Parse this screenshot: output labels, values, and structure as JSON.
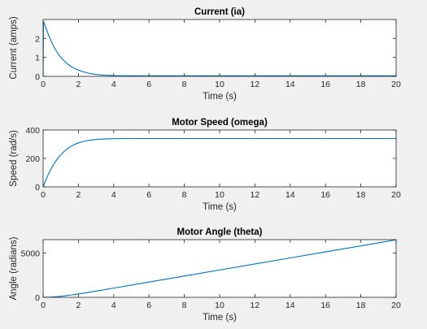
{
  "colors": {
    "line": "#0072BD",
    "axes_bg": "#ffffff",
    "figure_bg": "#f0f0f0",
    "axis": "#262626"
  },
  "chart_data": [
    {
      "type": "line",
      "title": "Current (ia)",
      "xlabel": "Time (s)",
      "ylabel": "Current (amps)",
      "xlim": [
        0,
        20
      ],
      "ylim": [
        0,
        3
      ],
      "xticks": [
        0,
        2,
        4,
        6,
        8,
        10,
        12,
        14,
        16,
        18,
        20
      ],
      "yticks": [
        0,
        1,
        2
      ],
      "grid": false,
      "series": [
        {
          "x": [
            0,
            0.02,
            0.05,
            0.1,
            0.2,
            0.3,
            0.4,
            0.5,
            0.6,
            0.7,
            0.8,
            0.9,
            1.0,
            1.2,
            1.4,
            1.6,
            1.8,
            2.0,
            2.3,
            2.6,
            3.0,
            3.5,
            4.0,
            5.0,
            6.0,
            8.0,
            10.0,
            12.0,
            14.0,
            16.0,
            18.0,
            20.0
          ],
          "y": [
            0,
            2.8,
            2.85,
            2.7,
            2.45,
            2.2,
            1.98,
            1.77,
            1.58,
            1.42,
            1.27,
            1.13,
            1.01,
            0.81,
            0.64,
            0.51,
            0.41,
            0.33,
            0.23,
            0.16,
            0.1,
            0.06,
            0.04,
            0.03,
            0.03,
            0.03,
            0.03,
            0.03,
            0.03,
            0.03,
            0.03,
            0.03
          ]
        }
      ]
    },
    {
      "type": "line",
      "title": "Motor Speed (omega)",
      "xlabel": "Time (s)",
      "ylabel": "Speed (rad/s)",
      "xlim": [
        0,
        20
      ],
      "ylim": [
        0,
        400
      ],
      "xticks": [
        0,
        2,
        4,
        6,
        8,
        10,
        12,
        14,
        16,
        18,
        20
      ],
      "yticks": [
        0,
        200,
        400
      ],
      "grid": false,
      "series": [
        {
          "x": [
            0,
            0.1,
            0.2,
            0.3,
            0.4,
            0.5,
            0.6,
            0.7,
            0.8,
            0.9,
            1.0,
            1.2,
            1.4,
            1.6,
            1.8,
            2.0,
            2.3,
            2.6,
            3.0,
            3.5,
            4.0,
            5.0,
            6.0,
            8.0,
            10.0,
            12.0,
            14.0,
            16.0,
            18.0,
            20.0
          ],
          "y": [
            0,
            32,
            62,
            89,
            114,
            137,
            158,
            177,
            195,
            211,
            225,
            250,
            270,
            286,
            299,
            309,
            320,
            327,
            333,
            337,
            339,
            340,
            340,
            340,
            340,
            340,
            340,
            340,
            340,
            340
          ]
        }
      ]
    },
    {
      "type": "line",
      "title": "Motor Angle (theta)",
      "xlabel": "Time (s)",
      "ylabel": "Angle (radians)",
      "xlim": [
        0,
        20
      ],
      "ylim": [
        0,
        6500
      ],
      "xticks": [
        0,
        2,
        4,
        6,
        8,
        10,
        12,
        14,
        16,
        18,
        20
      ],
      "yticks": [
        0,
        5000
      ],
      "grid": false,
      "series": [
        {
          "x": [
            0,
            0.5,
            1.0,
            1.5,
            2.0,
            3.0,
            4.0,
            5.0,
            6.0,
            8.0,
            10.0,
            12.0,
            14.0,
            16.0,
            18.0,
            20.0
          ],
          "y": [
            0,
            30,
            110,
            240,
            370,
            700,
            1040,
            1380,
            1720,
            2400,
            3080,
            3760,
            4440,
            5120,
            5800,
            6480
          ]
        }
      ]
    }
  ]
}
